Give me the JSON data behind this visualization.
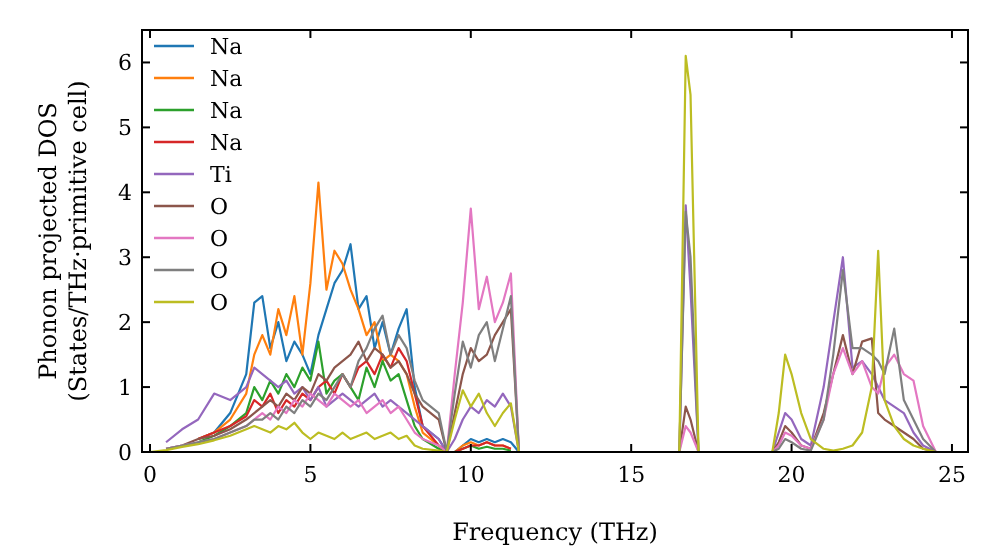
{
  "chart_data": {
    "type": "line",
    "xlabel": "Frequency (THz)",
    "ylabel": "Phonon projected DOS\n(States/THz·primitive cell)",
    "xlim": [
      -0.25,
      25.5
    ],
    "ylim": [
      0,
      6.5
    ],
    "xticks": [
      0,
      5,
      10,
      15,
      20,
      25
    ],
    "yticks": [
      0,
      1,
      2,
      3,
      4,
      5,
      6
    ],
    "legend": "top left",
    "grid": false,
    "marker": "none",
    "line_style": "solid",
    "x": [
      0,
      0.5,
      1,
      1.5,
      2,
      2.5,
      3,
      3.25,
      3.5,
      3.75,
      4,
      4.25,
      4.5,
      4.75,
      5,
      5.25,
      5.5,
      5.75,
      6,
      6.25,
      6.5,
      6.75,
      7,
      7.25,
      7.5,
      7.75,
      8,
      8.25,
      8.5,
      9,
      9.25,
      9.5,
      9.75,
      10,
      10.25,
      10.5,
      10.75,
      11,
      11.25,
      11.5,
      12,
      16.5,
      16.7,
      16.85,
      17.1,
      17.3,
      19.4,
      19.6,
      19.8,
      20,
      20.3,
      20.6,
      21,
      21.3,
      21.6,
      21.9,
      22.2,
      22.5,
      22.7,
      22.9,
      23.2,
      23.5,
      23.8,
      24.1,
      24.5,
      25
    ],
    "series": [
      {
        "name": "Na",
        "color": "#1f77b4",
        "values": [
          null,
          null,
          null,
          0.2,
          0.3,
          0.6,
          1.2,
          2.3,
          2.4,
          1.6,
          2.0,
          1.4,
          1.7,
          1.5,
          1.2,
          1.8,
          2.2,
          2.6,
          2.8,
          3.2,
          2.2,
          2.4,
          1.6,
          2.0,
          1.5,
          1.9,
          2.2,
          1.0,
          0.4,
          0.2,
          0,
          0,
          0.1,
          0.2,
          0.15,
          0.2,
          0.15,
          0.2,
          0.15,
          0,
          0,
          null,
          null,
          null,
          null,
          null,
          null,
          null,
          null,
          null,
          null,
          null,
          null,
          null,
          null,
          null,
          null,
          null,
          null,
          null,
          null,
          null,
          null,
          null,
          null,
          null
        ]
      },
      {
        "name": "Na",
        "color": "#ff7f0e",
        "values": [
          null,
          null,
          null,
          0.2,
          0.3,
          0.5,
          0.9,
          1.5,
          1.8,
          1.5,
          2.2,
          1.8,
          2.4,
          1.5,
          2.6,
          4.15,
          2.5,
          3.1,
          2.9,
          2.5,
          2.2,
          1.8,
          2.0,
          1.4,
          1.5,
          1.4,
          1.2,
          0.7,
          0.3,
          0.1,
          0,
          0,
          0.1,
          0.15,
          0.1,
          0.15,
          0.1,
          0.1,
          0.05,
          null,
          null,
          null,
          null,
          null,
          null,
          null,
          null,
          null,
          null,
          null,
          null,
          null,
          null,
          null,
          null,
          null,
          null,
          null,
          null,
          null,
          null,
          null,
          null,
          null,
          null,
          null
        ]
      },
      {
        "name": "Na",
        "color": "#2ca02c",
        "values": [
          null,
          null,
          null,
          0.15,
          0.25,
          0.4,
          0.6,
          1.0,
          0.8,
          1.1,
          0.9,
          1.2,
          1.0,
          1.3,
          1.1,
          1.7,
          0.9,
          1.1,
          1.2,
          1.0,
          0.8,
          1.3,
          1.0,
          1.4,
          1.1,
          1.2,
          0.8,
          0.4,
          0.2,
          0.05,
          0,
          0,
          0.05,
          0.1,
          0.05,
          0.08,
          0.05,
          0.05,
          0.02,
          null,
          null,
          null,
          null,
          null,
          null,
          null,
          null,
          null,
          null,
          null,
          null,
          null,
          null,
          null,
          null,
          null,
          null,
          null,
          null,
          null,
          null,
          null,
          null,
          null,
          null,
          null
        ]
      },
      {
        "name": "Na",
        "color": "#d62728",
        "values": [
          null,
          null,
          null,
          0.2,
          0.3,
          0.4,
          0.55,
          0.8,
          0.7,
          0.9,
          0.6,
          0.8,
          0.7,
          0.9,
          0.8,
          1.0,
          1.1,
          0.9,
          1.2,
          1.0,
          1.3,
          1.4,
          1.2,
          1.5,
          1.3,
          1.6,
          1.4,
          0.9,
          0.4,
          0.1,
          0,
          0,
          0.05,
          0.1,
          0.1,
          0.15,
          0.1,
          0.1,
          0.05,
          null,
          null,
          null,
          null,
          null,
          null,
          null,
          null,
          null,
          null,
          null,
          null,
          null,
          null,
          null,
          null,
          null,
          null,
          null,
          null,
          null,
          null,
          null,
          null,
          null,
          null,
          null
        ]
      },
      {
        "name": "Ti",
        "color": "#9467bd",
        "values": [
          null,
          0.15,
          0.35,
          0.5,
          0.9,
          0.8,
          1.0,
          1.3,
          1.2,
          1.1,
          1.0,
          1.1,
          0.9,
          1.0,
          0.8,
          1.0,
          0.7,
          0.8,
          0.9,
          0.8,
          0.7,
          0.8,
          0.9,
          0.7,
          0.8,
          0.7,
          0.6,
          0.5,
          0.4,
          0.2,
          0,
          0.2,
          0.5,
          0.7,
          0.6,
          0.8,
          0.7,
          0.9,
          0.7,
          0,
          0,
          0,
          3.8,
          2.5,
          0,
          0,
          0,
          0.3,
          0.6,
          0.5,
          0.2,
          0.1,
          1.0,
          2.0,
          3.0,
          1.3,
          1.4,
          1.2,
          1.0,
          0.8,
          0.7,
          0.6,
          0.3,
          0.1,
          0,
          0
        ]
      },
      {
        "name": "O",
        "color": "#8c564b",
        "values": [
          null,
          0.05,
          0.1,
          0.2,
          0.25,
          0.35,
          0.5,
          0.6,
          0.7,
          0.8,
          0.7,
          0.9,
          0.8,
          1.0,
          0.9,
          1.2,
          1.1,
          1.3,
          1.4,
          1.5,
          1.7,
          1.4,
          1.6,
          1.5,
          1.3,
          1.4,
          1.2,
          0.9,
          0.7,
          0.5,
          0,
          0.6,
          1.2,
          1.6,
          1.4,
          1.5,
          1.8,
          2.0,
          2.2,
          0,
          0,
          0,
          0.7,
          0.5,
          0,
          0,
          0,
          0.15,
          0.4,
          0.3,
          0.1,
          0.05,
          0.6,
          1.2,
          1.8,
          1.2,
          1.7,
          1.75,
          0.6,
          0.5,
          0.4,
          0.3,
          0.2,
          0.05,
          0,
          0
        ]
      },
      {
        "name": "O",
        "color": "#e377c2",
        "values": [
          null,
          0.05,
          0.1,
          0.15,
          0.2,
          0.3,
          0.4,
          0.5,
          0.6,
          0.5,
          0.7,
          0.6,
          0.8,
          0.7,
          0.9,
          0.8,
          0.7,
          0.9,
          0.8,
          0.7,
          0.8,
          0.6,
          0.7,
          0.8,
          0.6,
          0.7,
          0.5,
          0.3,
          0.2,
          0.1,
          0,
          1.2,
          2.3,
          3.75,
          2.2,
          2.7,
          2.0,
          2.3,
          2.75,
          0,
          0,
          0,
          0.4,
          0.3,
          0,
          0,
          0,
          0.1,
          0.3,
          0.25,
          0.1,
          0.05,
          0.5,
          1.2,
          1.6,
          1.2,
          1.4,
          1.0,
          0.9,
          1.3,
          1.5,
          1.2,
          1.1,
          0.4,
          0,
          0
        ]
      },
      {
        "name": "O",
        "color": "#7f7f7f",
        "values": [
          null,
          0.05,
          0.1,
          0.15,
          0.2,
          0.3,
          0.4,
          0.5,
          0.5,
          0.6,
          0.5,
          0.7,
          0.6,
          0.8,
          0.7,
          0.9,
          0.8,
          1.0,
          1.2,
          1.0,
          1.4,
          1.6,
          1.9,
          2.1,
          1.5,
          1.8,
          1.6,
          1.1,
          0.8,
          0.6,
          0,
          0.9,
          1.7,
          1.3,
          1.8,
          2.0,
          1.4,
          1.9,
          2.4,
          0,
          0,
          0,
          3.7,
          3.0,
          0,
          0,
          0,
          0.05,
          0.2,
          0.15,
          0.05,
          0.02,
          0.5,
          1.5,
          2.8,
          1.6,
          1.6,
          1.5,
          1.4,
          1.2,
          1.9,
          0.8,
          0.5,
          0.2,
          0,
          0
        ]
      },
      {
        "name": "O",
        "color": "#bcbd22",
        "values": [
          0,
          0.03,
          0.08,
          0.12,
          0.18,
          0.25,
          0.35,
          0.4,
          0.35,
          0.3,
          0.4,
          0.35,
          0.45,
          0.3,
          0.2,
          0.3,
          0.25,
          0.2,
          0.3,
          0.2,
          0.25,
          0.3,
          0.2,
          0.25,
          0.3,
          0.2,
          0.25,
          0.1,
          0.05,
          0.02,
          0,
          0.5,
          0.95,
          0.7,
          0.9,
          0.6,
          0.4,
          0.6,
          0.75,
          0,
          null,
          0,
          6.1,
          5.5,
          0,
          0,
          0,
          0.6,
          1.5,
          1.2,
          0.6,
          0.2,
          0.05,
          0.02,
          0.05,
          0.1,
          0.3,
          1.0,
          3.1,
          0.8,
          0.4,
          0.2,
          0.1,
          0.05,
          0,
          null
        ]
      }
    ]
  }
}
